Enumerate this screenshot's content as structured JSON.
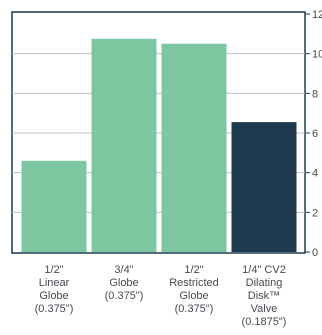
{
  "chart_data": {
    "type": "bar",
    "title": "",
    "xlabel": "",
    "ylabel": "",
    "categories": [
      [
        "1/2\"",
        "Linear",
        "Globe",
        "(0.375\")"
      ],
      [
        "3/4\"",
        "Globe",
        "(0.375\")"
      ],
      [
        "1/2\"",
        "Restricted",
        "Globe",
        "(0.375\")"
      ],
      [
        "1/4\" CV2",
        "Dilating",
        "Disk™",
        "Valve",
        "(0.1875\")"
      ]
    ],
    "values": [
      4.6,
      10.75,
      10.5,
      6.55
    ],
    "bar_colors": [
      "#7cc7a0",
      "#7cc7a0",
      "#7cc7a0",
      "#1e3a4f"
    ],
    "y_ticks": [
      0,
      2,
      4,
      6,
      8,
      10,
      12
    ],
    "y_tick_labels": [
      "0",
      "2",
      "4",
      "6",
      "8",
      "10",
      "12"
    ],
    "ylim": [
      0,
      12
    ],
    "y_axis_position": "right",
    "grid": true,
    "legend": "none"
  }
}
